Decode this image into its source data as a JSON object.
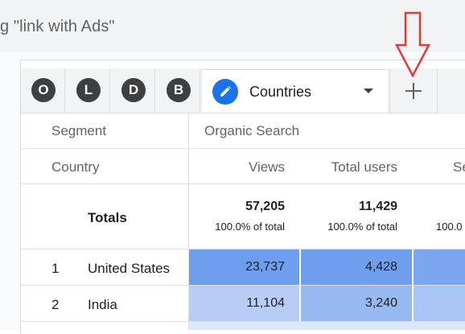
{
  "search": {
    "text": "g \"link with Ads\""
  },
  "tabs": [
    {
      "letter": "O"
    },
    {
      "letter": "L"
    },
    {
      "letter": "D"
    },
    {
      "letter": "B"
    }
  ],
  "active_tab": {
    "label": "Countries",
    "icon": "pencil-icon"
  },
  "add_tab": {
    "icon": "plus-icon"
  },
  "annotation": {
    "icon": "red-down-arrow-icon",
    "color": "#e53935"
  },
  "table": {
    "segment_label": "Segment",
    "segment_value": "Organic Search",
    "dimension_label": "Country",
    "columns": [
      "Views",
      "Total users",
      "Se"
    ],
    "totals": {
      "label": "Totals",
      "views": "57,205",
      "views_pct": "100.0% of total",
      "users": "11,429",
      "users_pct": "100.0% of total",
      "third_pct": "100.0"
    },
    "rows": [
      {
        "rank": "1",
        "country": "United States",
        "views": "23,737",
        "users": "4,428"
      },
      {
        "rank": "2",
        "country": "India",
        "views": "11,104",
        "users": "3,240"
      }
    ],
    "heat_colors": {
      "row1_views": "#6e9eec",
      "row1_users": "#6e9eec",
      "row1_third": "#7aa7ef",
      "row2_views": "#b7cdf6",
      "row2_users": "#97b9f2",
      "row2_third": "#a9c5f5",
      "row3": "#dce7fb"
    }
  }
}
